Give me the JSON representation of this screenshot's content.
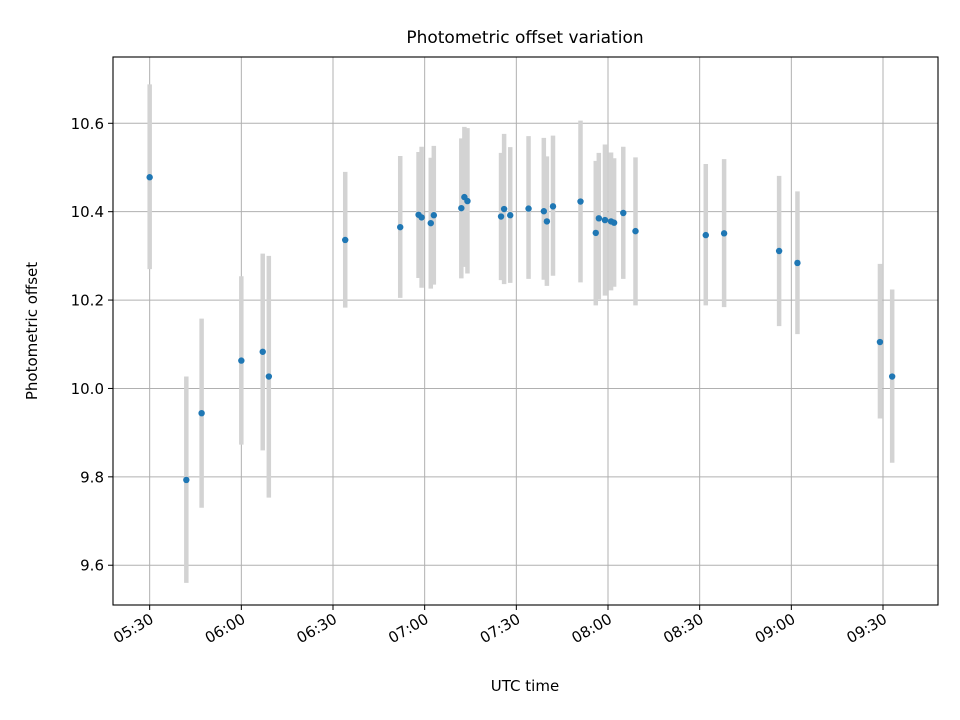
{
  "chart_data": {
    "type": "scatter",
    "title": "Photometric offset variation",
    "xlabel": "UTC time",
    "ylabel": "Photometric offset",
    "xlim": [
      "05:18",
      "09:48"
    ],
    "ylim": [
      9.51,
      10.75
    ],
    "grid": true,
    "x_ticks": [
      "05:30",
      "06:00",
      "06:30",
      "07:00",
      "07:30",
      "08:00",
      "08:30",
      "09:00",
      "09:30"
    ],
    "y_ticks": [
      9.6,
      9.8,
      10.0,
      10.2,
      10.4,
      10.6
    ],
    "y_tick_labels": [
      "9.6",
      "9.8",
      "10.0",
      "10.2",
      "10.4",
      "10.6"
    ],
    "point_color": "#1f77b4",
    "errorbar_color": "#d3d3d3",
    "points": [
      {
        "x": "05:30",
        "y": 10.478,
        "lo": 10.27,
        "hi": 10.688
      },
      {
        "x": "05:42",
        "y": 9.793,
        "lo": 9.56,
        "hi": 10.027
      },
      {
        "x": "05:47",
        "y": 9.944,
        "lo": 9.73,
        "hi": 10.158
      },
      {
        "x": "06:00",
        "y": 10.063,
        "lo": 9.873,
        "hi": 10.254
      },
      {
        "x": "06:07",
        "y": 10.083,
        "lo": 9.86,
        "hi": 10.305
      },
      {
        "x": "06:09",
        "y": 10.027,
        "lo": 9.753,
        "hi": 10.3
      },
      {
        "x": "06:34",
        "y": 10.336,
        "lo": 10.183,
        "hi": 10.49
      },
      {
        "x": "06:52",
        "y": 10.365,
        "lo": 10.205,
        "hi": 10.526
      },
      {
        "x": "06:58",
        "y": 10.393,
        "lo": 10.25,
        "hi": 10.535
      },
      {
        "x": "06:59",
        "y": 10.387,
        "lo": 10.228,
        "hi": 10.547
      },
      {
        "x": "07:02",
        "y": 10.374,
        "lo": 10.226,
        "hi": 10.522
      },
      {
        "x": "07:03",
        "y": 10.392,
        "lo": 10.235,
        "hi": 10.549
      },
      {
        "x": "07:12",
        "y": 10.408,
        "lo": 10.249,
        "hi": 10.566
      },
      {
        "x": "07:13",
        "y": 10.433,
        "lo": 10.275,
        "hi": 10.592
      },
      {
        "x": "07:14",
        "y": 10.424,
        "lo": 10.26,
        "hi": 10.589
      },
      {
        "x": "07:25",
        "y": 10.389,
        "lo": 10.245,
        "hi": 10.533
      },
      {
        "x": "07:26",
        "y": 10.406,
        "lo": 10.236,
        "hi": 10.576
      },
      {
        "x": "07:28",
        "y": 10.392,
        "lo": 10.239,
        "hi": 10.546
      },
      {
        "x": "07:34",
        "y": 10.407,
        "lo": 10.248,
        "hi": 10.571
      },
      {
        "x": "07:39",
        "y": 10.401,
        "lo": 10.246,
        "hi": 10.567
      },
      {
        "x": "07:40",
        "y": 10.378,
        "lo": 10.232,
        "hi": 10.525
      },
      {
        "x": "07:42",
        "y": 10.412,
        "lo": 10.255,
        "hi": 10.572
      },
      {
        "x": "07:51",
        "y": 10.423,
        "lo": 10.24,
        "hi": 10.606
      },
      {
        "x": "07:56",
        "y": 10.352,
        "lo": 10.188,
        "hi": 10.515
      },
      {
        "x": "07:57",
        "y": 10.385,
        "lo": 10.202,
        "hi": 10.533
      },
      {
        "x": "07:59",
        "y": 10.381,
        "lo": 10.21,
        "hi": 10.552
      },
      {
        "x": "08:01",
        "y": 10.378,
        "lo": 10.222,
        "hi": 10.534
      },
      {
        "x": "08:02",
        "y": 10.375,
        "lo": 10.23,
        "hi": 10.521
      },
      {
        "x": "08:05",
        "y": 10.397,
        "lo": 10.248,
        "hi": 10.547
      },
      {
        "x": "08:09",
        "y": 10.356,
        "lo": 10.188,
        "hi": 10.523
      },
      {
        "x": "08:32",
        "y": 10.347,
        "lo": 10.188,
        "hi": 10.508
      },
      {
        "x": "08:38",
        "y": 10.351,
        "lo": 10.184,
        "hi": 10.519
      },
      {
        "x": "08:56",
        "y": 10.311,
        "lo": 10.141,
        "hi": 10.481
      },
      {
        "x": "09:02",
        "y": 10.284,
        "lo": 10.123,
        "hi": 10.446
      },
      {
        "x": "09:29",
        "y": 10.105,
        "lo": 9.932,
        "hi": 10.282
      },
      {
        "x": "09:33",
        "y": 10.027,
        "lo": 9.832,
        "hi": 10.224
      }
    ]
  }
}
